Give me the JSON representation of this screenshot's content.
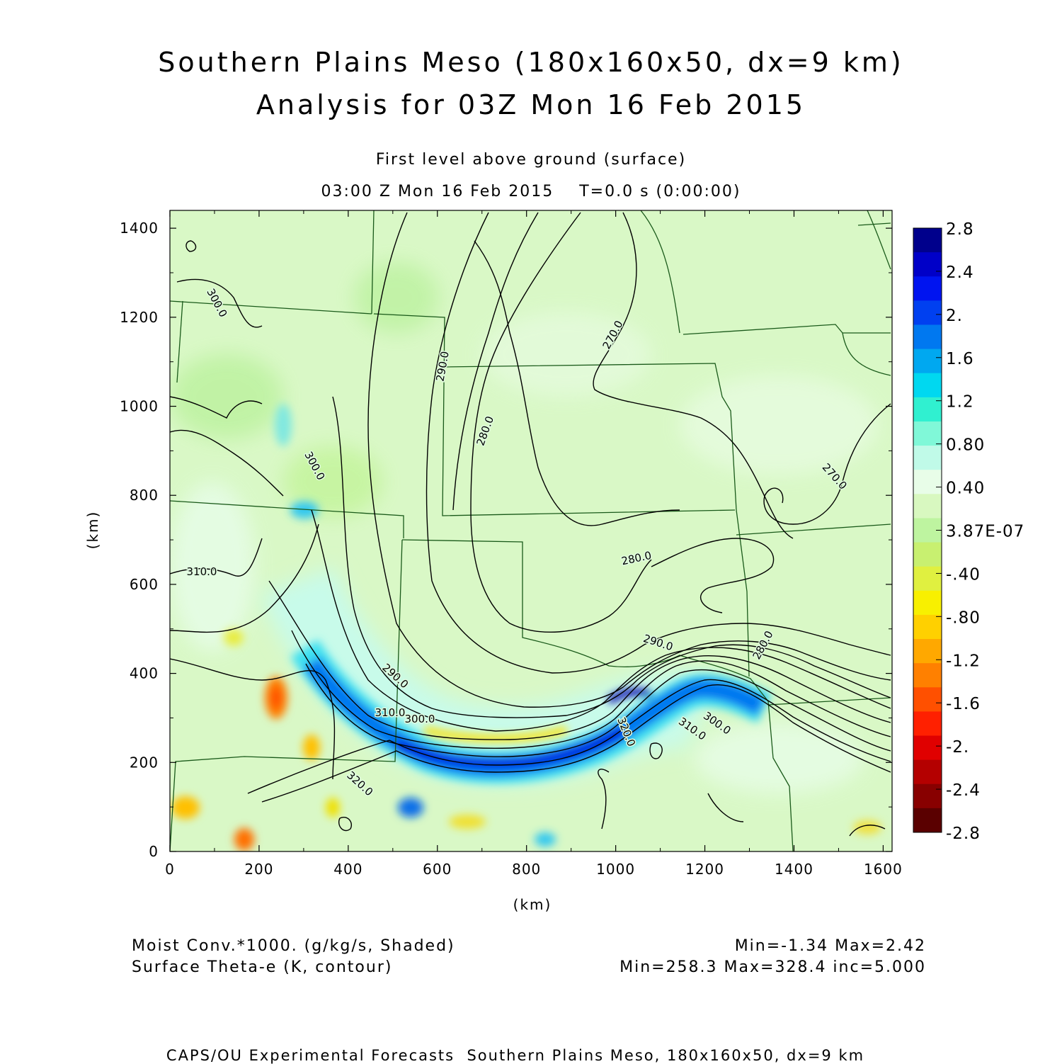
{
  "header": {
    "title_line1": "Southern Plains Meso (180x160x50, dx=9 km)",
    "title_line2": "Analysis for 03Z Mon 16 Feb 2015",
    "subtitle_line1": "First level above ground (surface)",
    "subtitle_line2": "03:00 Z Mon 16 Feb 2015    T=0.0 s (0:00:00)"
  },
  "footer": {
    "shaded_label": "Moist Conv.*1000. (g/kg/s, Shaded)",
    "contour_label": "Surface Theta-e (K, contour)",
    "shaded_stats": "Min=-1.34 Max=2.42",
    "contour_stats": "Min=258.3 Max=328.4 inc=5.000",
    "credit": "CAPS/OU Experimental Forecasts  Southern Plains Meso, 180x160x50, dx=9 km"
  },
  "chart_data": {
    "type": "heatmap",
    "xlabel": "(km)",
    "ylabel": "(km)",
    "xlim": [
      0,
      1620
    ],
    "ylim": [
      0,
      1440
    ],
    "x_ticks": [
      "0",
      "200",
      "400",
      "600",
      "800",
      "1000",
      "1200",
      "1400",
      "1600"
    ],
    "y_ticks": [
      "0",
      "200",
      "400",
      "600",
      "800",
      "1000",
      "1200",
      "1400"
    ],
    "colorbar": {
      "labels": [
        "2.8",
        "2.4",
        "2.",
        "1.6",
        "1.2",
        "0.80",
        "0.40",
        "3.87E-07",
        "-.40",
        "-.80",
        "-1.2",
        "-1.6",
        "-2.",
        "-2.4",
        "-2.8"
      ],
      "colors": [
        "#00008c",
        "#0000c8",
        "#0014f0",
        "#0040f0",
        "#0078f0",
        "#00a8f0",
        "#00d8f0",
        "#30f0d0",
        "#80f8d8",
        "#c0fae8",
        "#e8fde8",
        "#d8f8c0",
        "#bef4a0",
        "#c8f070",
        "#e0f040",
        "#f8f000",
        "#ffd000",
        "#ffa800",
        "#ff8000",
        "#ff5000",
        "#ff2000",
        "#e00000",
        "#b40000",
        "#880000",
        "#5a0000"
      ]
    },
    "contour_labels": [
      "300.0",
      "290.0",
      "270.0",
      "280.0",
      "300.0",
      "270.0",
      "310.0",
      "280.0",
      "290.0",
      "280.0",
      "290.0",
      "310.0",
      "300.0",
      "320.0",
      "310.0",
      "300.0",
      "320.0"
    ],
    "convergence_band": [
      {
        "x": 290,
        "y": 470,
        "value": 0.8
      },
      {
        "x": 360,
        "y": 380,
        "value": 1.2
      },
      {
        "x": 440,
        "y": 310,
        "value": 1.4
      },
      {
        "x": 540,
        "y": 250,
        "value": 2.0
      },
      {
        "x": 600,
        "y": 215,
        "value": 2.4
      },
      {
        "x": 700,
        "y": 205,
        "value": 2.4
      },
      {
        "x": 800,
        "y": 215,
        "value": 2.4
      },
      {
        "x": 900,
        "y": 255,
        "value": 2.2
      },
      {
        "x": 980,
        "y": 330,
        "value": 2.42
      },
      {
        "x": 1040,
        "y": 350,
        "value": 2.0
      },
      {
        "x": 1090,
        "y": 320,
        "value": 1.2
      }
    ],
    "divergence_spots": [
      {
        "x": 240,
        "y": 340,
        "value": -1.2
      },
      {
        "x": 330,
        "y": 230,
        "value": -0.8
      },
      {
        "x": 170,
        "y": 30,
        "value": -1.34
      },
      {
        "x": 30,
        "y": 100,
        "value": -1.0
      },
      {
        "x": 700,
        "y": 265,
        "value": -1.0
      }
    ]
  }
}
